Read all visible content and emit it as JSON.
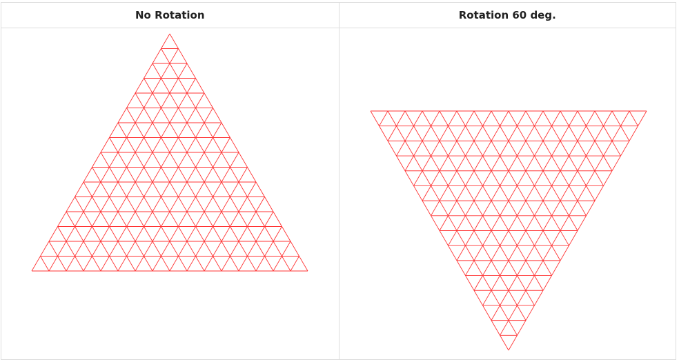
{
  "panels": [
    {
      "title": "No Rotation",
      "rotation_deg": 0
    },
    {
      "title": "Rotation 60 deg.",
      "rotation_deg": 60
    }
  ],
  "mesh": {
    "subdivisions": 16,
    "line_color": "#ff3333"
  }
}
